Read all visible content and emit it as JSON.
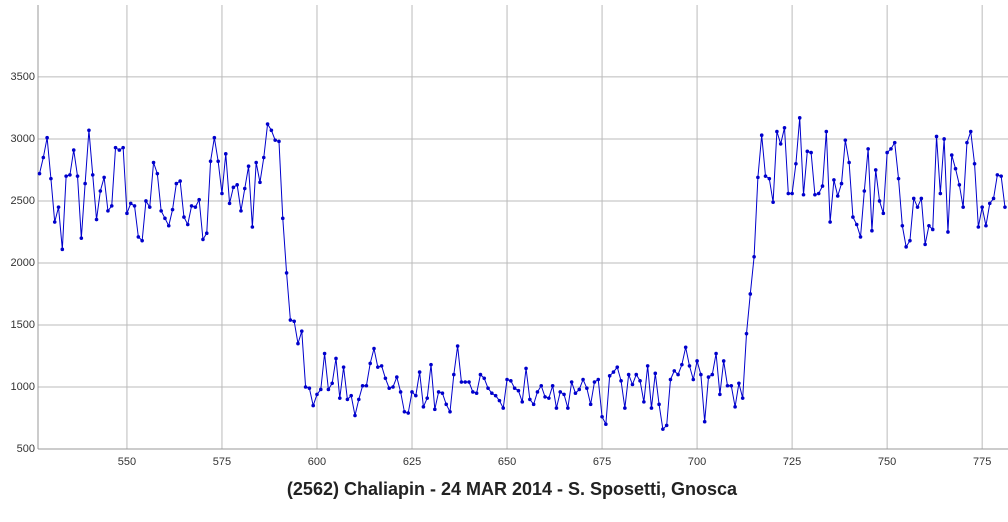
{
  "chart_data": {
    "type": "line",
    "title": "(2562) Chaliapin - 24 MAR 2014 - S. Sposetti, Gnosca",
    "x": [
      527,
      528,
      529,
      530,
      531,
      532,
      533,
      534,
      535,
      536,
      537,
      538,
      539,
      540,
      541,
      542,
      543,
      544,
      545,
      546,
      547,
      548,
      549,
      550,
      551,
      552,
      553,
      554,
      555,
      556,
      557,
      558,
      559,
      560,
      561,
      562,
      563,
      564,
      565,
      566,
      567,
      568,
      569,
      570,
      571,
      572,
      573,
      574,
      575,
      576,
      577,
      578,
      579,
      580,
      581,
      582,
      583,
      584,
      585,
      586,
      587,
      588,
      589,
      590,
      591,
      592,
      593,
      594,
      595,
      596,
      597,
      598,
      599,
      600,
      601,
      602,
      603,
      604,
      605,
      606,
      607,
      608,
      609,
      610,
      611,
      612,
      613,
      614,
      615,
      616,
      617,
      618,
      619,
      620,
      621,
      622,
      623,
      624,
      625,
      626,
      627,
      628,
      629,
      630,
      631,
      632,
      633,
      634,
      635,
      636,
      637,
      638,
      639,
      640,
      641,
      642,
      643,
      644,
      645,
      646,
      647,
      648,
      649,
      650,
      651,
      652,
      653,
      654,
      655,
      656,
      657,
      658,
      659,
      660,
      661,
      662,
      663,
      664,
      665,
      666,
      667,
      668,
      669,
      670,
      671,
      672,
      673,
      674,
      675,
      676,
      677,
      678,
      679,
      680,
      681,
      682,
      683,
      684,
      685,
      686,
      687,
      688,
      689,
      690,
      691,
      692,
      693,
      694,
      695,
      696,
      697,
      698,
      699,
      700,
      701,
      702,
      703,
      704,
      705,
      706,
      707,
      708,
      709,
      710,
      711,
      712,
      713,
      714,
      715,
      716,
      717,
      718,
      719,
      720,
      721,
      722,
      723,
      724,
      725,
      726,
      727,
      728,
      729,
      730,
      731,
      732,
      733,
      734,
      735,
      736,
      737,
      738,
      739,
      740,
      741,
      742,
      743,
      744,
      745,
      746,
      747,
      748,
      749,
      750,
      751,
      752,
      753,
      754,
      755,
      756,
      757,
      758,
      759,
      760,
      761,
      762,
      763,
      764,
      765,
      766,
      767,
      768,
      769,
      770,
      771,
      772,
      773,
      774,
      775,
      776,
      777,
      778,
      779,
      780,
      781
    ],
    "series": [
      {
        "color": "#0000cc",
        "values": [
          2720,
          2850,
          3010,
          2680,
          2330,
          2450,
          2110,
          2700,
          2710,
          2910,
          2700,
          2200,
          2640,
          3070,
          2710,
          2350,
          2580,
          2690,
          2420,
          2460,
          2930,
          2910,
          2930,
          2400,
          2480,
          2460,
          2210,
          2180,
          2500,
          2450,
          2810,
          2720,
          2420,
          2360,
          2300,
          2430,
          2640,
          2660,
          2370,
          2310,
          2460,
          2450,
          2510,
          2190,
          2240,
          2820,
          3010,
          2820,
          2560,
          2880,
          2480,
          2610,
          2630,
          2420,
          2600,
          2780,
          2290,
          2810,
          2650,
          2850,
          3120,
          3070,
          2990,
          2980,
          2360,
          1920,
          1540,
          1530,
          1350,
          1450,
          1000,
          990,
          850,
          940,
          980,
          1270,
          980,
          1030,
          1230,
          910,
          1160,
          900,
          930,
          770,
          900,
          1010,
          1010,
          1190,
          1310,
          1160,
          1170,
          1070,
          990,
          1000,
          1080,
          960,
          800,
          790,
          960,
          930,
          1120,
          840,
          910,
          1180,
          820,
          960,
          950,
          860,
          800,
          1100,
          1330,
          1040,
          1040,
          1040,
          960,
          950,
          1100,
          1070,
          990,
          950,
          930,
          890,
          830,
          1060,
          1050,
          990,
          970,
          880,
          1150,
          900,
          860,
          960,
          1010,
          920,
          910,
          1010,
          830,
          960,
          940,
          830,
          1040,
          950,
          980,
          1060,
          990,
          860,
          1040,
          1060,
          760,
          700,
          1090,
          1120,
          1160,
          1050,
          830,
          1100,
          1020,
          1100,
          1050,
          880,
          1170,
          830,
          1110,
          860,
          660,
          690,
          1060,
          1130,
          1100,
          1180,
          1320,
          1170,
          1060,
          1210,
          1100,
          720,
          1080,
          1100,
          1270,
          940,
          1210,
          1010,
          1010,
          840,
          1030,
          910,
          1430,
          1750,
          2050,
          2690,
          3030,
          2700,
          2680,
          2490,
          3060,
          2960,
          3090,
          2560,
          2560,
          2800,
          3170,
          2550,
          2900,
          2890,
          2550,
          2560,
          2620,
          3060,
          2330,
          2670,
          2540,
          2640,
          2990,
          2810,
          2370,
          2310,
          2210,
          2580,
          2920,
          2260,
          2750,
          2500,
          2400,
          2890,
          2920,
          2970,
          2680,
          2300,
          2130,
          2180,
          2520,
          2450,
          2520,
          2150,
          2300,
          2270,
          3020,
          2560,
          3000,
          2250,
          2870,
          2760,
          2630,
          2450,
          2970,
          3060,
          2800,
          2290,
          2450,
          2300,
          2480,
          2520,
          2710,
          2700,
          2450
        ]
      }
    ],
    "xlim": [
      526.6,
      781.8
    ],
    "xticks": [
      550,
      575,
      600,
      625,
      650,
      675,
      700,
      725,
      750,
      775
    ],
    "ylim": [
      500,
      4080
    ],
    "yticks": [
      500,
      1000,
      1500,
      2000,
      2500,
      3000,
      3500
    ],
    "grid": true
  }
}
